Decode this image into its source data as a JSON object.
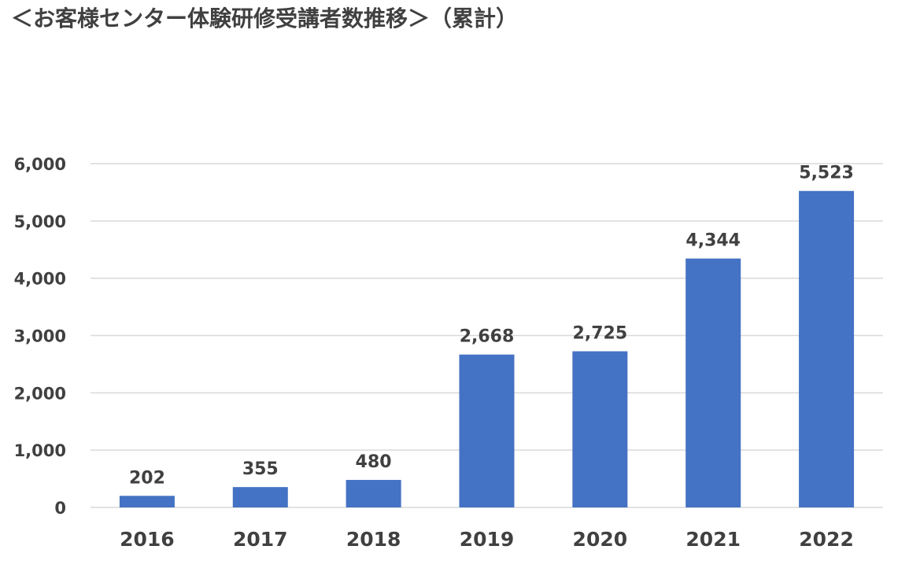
{
  "chart_data": {
    "type": "bar",
    "title": "＜お客様センター体験研修受講者数推移＞（累計）",
    "categories": [
      "2016",
      "2017",
      "2018",
      "2019",
      "2020",
      "2021",
      "2022"
    ],
    "values": [
      202,
      355,
      480,
      2668,
      2725,
      4344,
      5523
    ],
    "data_labels": [
      "202",
      "355",
      "480",
      "2,668",
      "2,725",
      "4,344",
      "5,523"
    ],
    "y_ticks": [
      0,
      1000,
      2000,
      3000,
      4000,
      5000,
      6000
    ],
    "y_tick_labels": [
      "0",
      "1,000",
      "2,000",
      "3,000",
      "4,000",
      "5,000",
      "6,000"
    ],
    "ylim": [
      0,
      6000
    ],
    "xlabel": "",
    "ylabel": "",
    "grid": true,
    "legend": "none",
    "colors": {
      "bar": "#4472C4",
      "grid": "#D9D9D9",
      "text": "#404040"
    }
  }
}
